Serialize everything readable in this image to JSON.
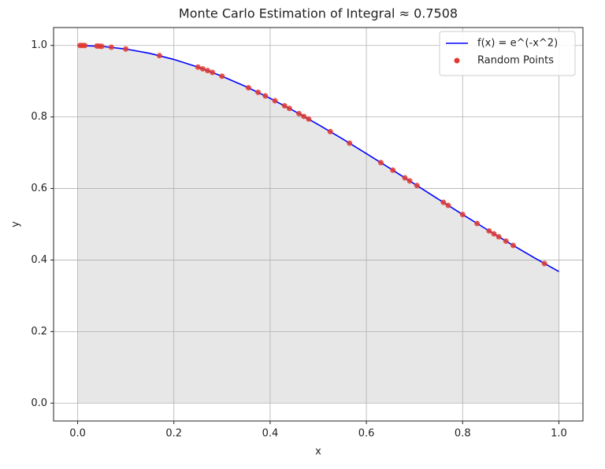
{
  "chart_data": {
    "type": "line",
    "title": "Monte Carlo Estimation of Integral ≈ 0.7508",
    "xlabel": "x",
    "ylabel": "y",
    "xlim": [
      -0.05,
      1.05
    ],
    "ylim": [
      -0.05,
      1.05
    ],
    "xticks": [
      {
        "value": 0,
        "label": "0.0"
      },
      0.2,
      0.4,
      0.6,
      0.8,
      {
        "value": 1,
        "label": "1.0"
      }
    ],
    "yticks": [
      {
        "value": 0,
        "label": "0.0"
      },
      0.2,
      0.4,
      0.6,
      0.8,
      {
        "value": 1,
        "label": "1.0"
      }
    ],
    "grid": true,
    "legend": "upper right",
    "fill_color": "#e7e7e7",
    "series": [
      {
        "name": "f(x) = e^(-x^2)",
        "type": "line",
        "color": "#0000ff",
        "x": [
          0,
          0.05,
          0.1,
          0.15,
          0.2,
          0.25,
          0.3,
          0.35,
          0.4,
          0.45,
          0.5,
          0.55,
          0.6,
          0.65,
          0.7,
          0.75,
          0.8,
          0.85,
          0.9,
          0.95,
          1.0
        ],
        "values": [
          1,
          0.9975,
          0.99,
          0.9778,
          0.9608,
          0.9394,
          0.9139,
          0.8847,
          0.8521,
          0.8167,
          0.7788,
          0.739,
          0.6977,
          0.6554,
          0.6126,
          0.5698,
          0.5273,
          0.4857,
          0.4449,
          0.4056,
          0.3679
        ]
      },
      {
        "name": "Random Points",
        "type": "scatter",
        "color": "#e03a2e",
        "x": [
          0.005,
          0.01,
          0.015,
          0.04,
          0.045,
          0.05,
          0.07,
          0.1,
          0.17,
          0.25,
          0.26,
          0.27,
          0.28,
          0.3,
          0.355,
          0.375,
          0.39,
          0.41,
          0.43,
          0.44,
          0.46,
          0.47,
          0.48,
          0.525,
          0.565,
          0.63,
          0.655,
          0.68,
          0.69,
          0.705,
          0.76,
          0.77,
          0.8,
          0.83,
          0.855,
          0.865,
          0.875,
          0.89,
          0.905,
          0.97
        ],
        "values": [
          1,
          0.9999,
          0.9998,
          0.9984,
          0.998,
          0.9975,
          0.9951,
          0.99,
          0.9715,
          0.9394,
          0.9346,
          0.9297,
          0.9246,
          0.9139,
          0.8816,
          0.8688,
          0.8589,
          0.8453,
          0.8312,
          0.824,
          0.8093,
          0.8018,
          0.7942,
          0.7591,
          0.7267,
          0.6724,
          0.6512,
          0.6298,
          0.6212,
          0.6083,
          0.5612,
          0.5527,
          0.5273,
          0.5021,
          0.4814,
          0.4732,
          0.465,
          0.4529,
          0.4409,
          0.3903
        ]
      }
    ]
  }
}
